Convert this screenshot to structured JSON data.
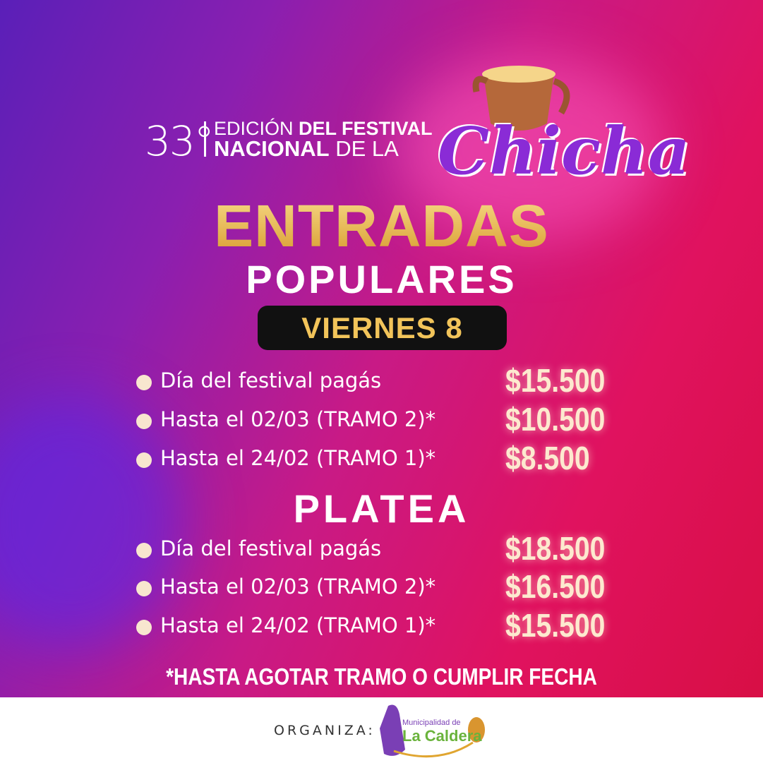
{
  "header": {
    "edition": "33°",
    "line1_regular": "EDICIÓN ",
    "line1_bold": "DEL FESTIVAL",
    "line2_bold": "NACIONAL",
    "line2_regular": " DE LA",
    "logo_text": "Chicha"
  },
  "title": "ENTRADAS",
  "subtitle": "POPULARES",
  "day_badge": "VIERNES 8",
  "populares": [
    {
      "label": "Día del festival pagás",
      "price": "$15.500"
    },
    {
      "label": "Hasta el 02/03 (TRAMO 2)*",
      "price": "$10.500"
    },
    {
      "label": "Hasta el 24/02 (TRAMO 1)*",
      "price": "$8.500"
    }
  ],
  "platea_title": "PLATEA",
  "platea": [
    {
      "label": "Día del festival pagás",
      "price": "$18.500"
    },
    {
      "label": "Hasta el 02/03 (TRAMO 2)*",
      "price": "$16.500"
    },
    {
      "label": "Hasta el 24/02 (TRAMO 1)*",
      "price": "$15.500"
    }
  ],
  "footnote": "*HASTA AGOTAR TRAMO O CUMPLIR FECHA",
  "footer": {
    "organiza": "ORGANIZA:",
    "logo_line1": "Municipalidad de",
    "logo_line2": "La Caldera"
  },
  "colors": {
    "gold": "#f2c45a",
    "price": "#fde9cf",
    "purple": "#5a1fb8",
    "magenta": "#e0125f"
  }
}
